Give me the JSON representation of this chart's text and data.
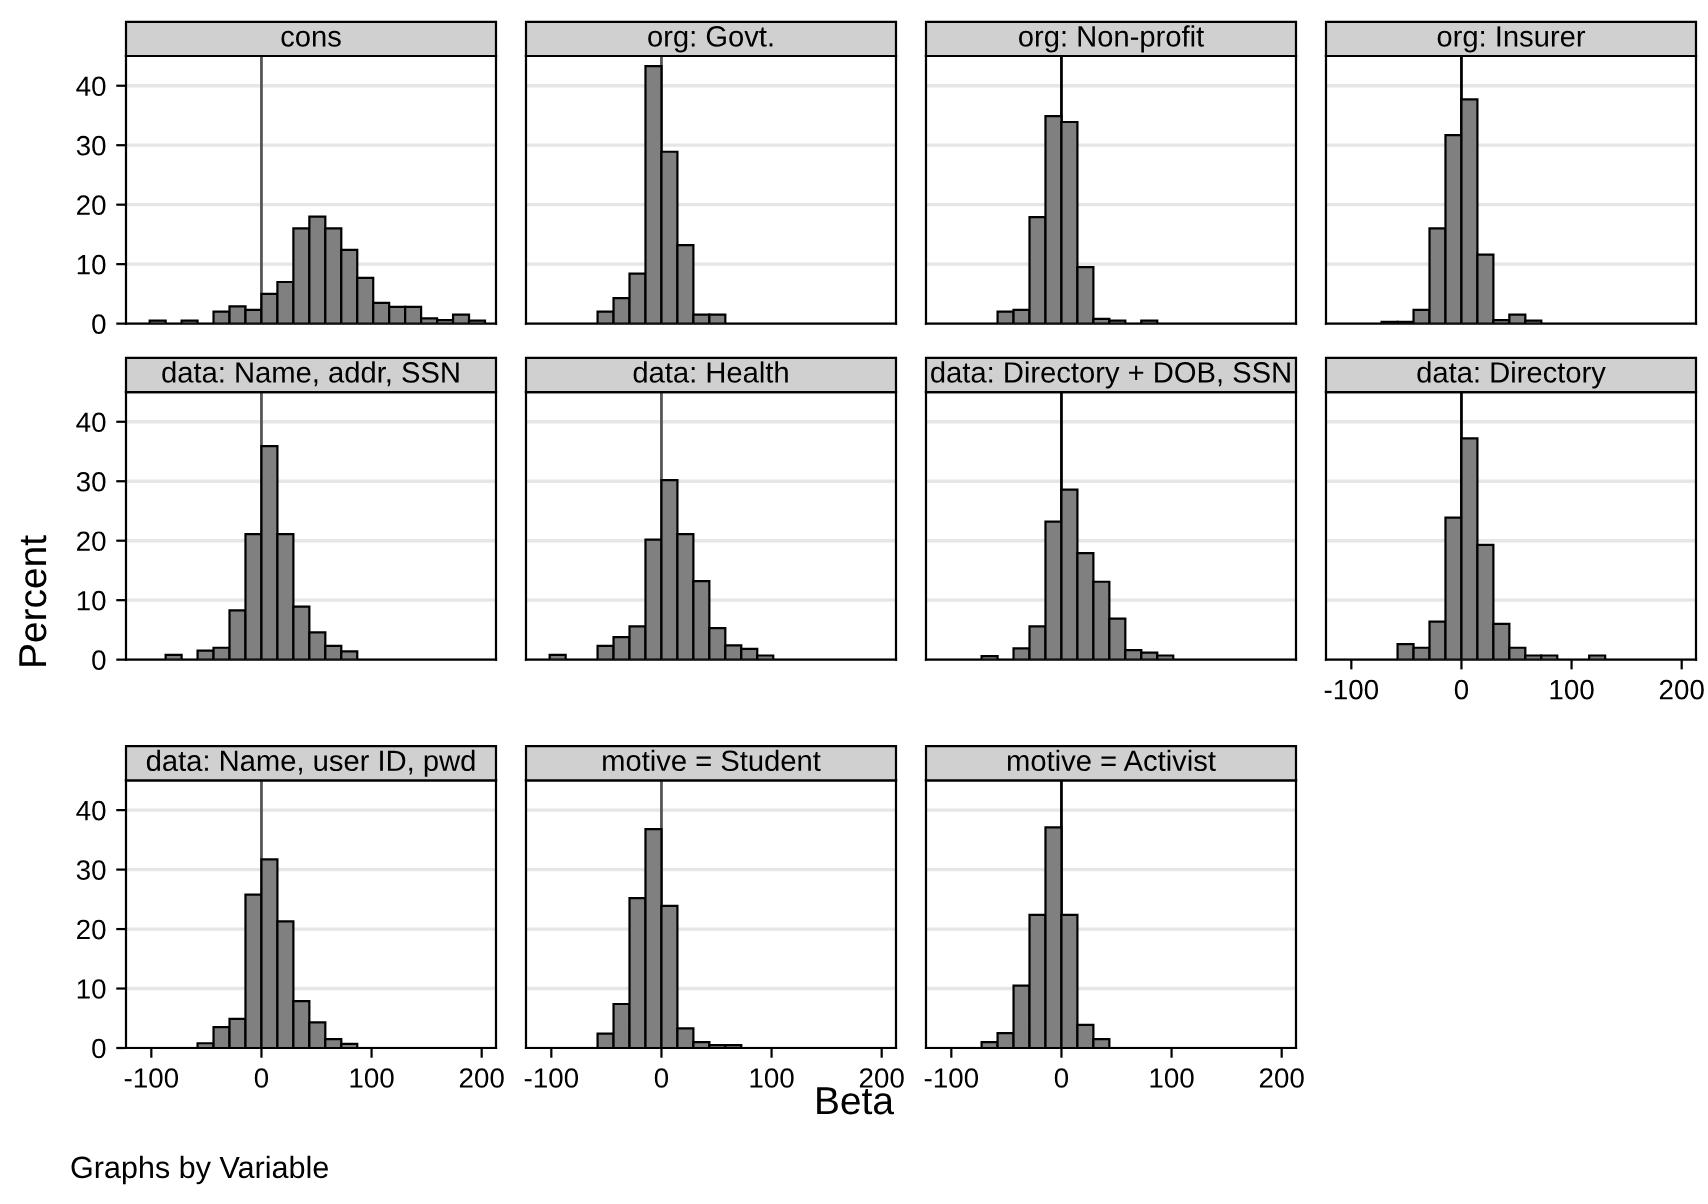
{
  "chart_data": [
    {
      "type": "histogram",
      "title": "cons",
      "bins": [
        -101.5,
        -87,
        -72.5,
        -58,
        -43.5,
        -29,
        -14.5,
        0,
        14.5,
        29,
        43.5,
        58,
        72.5,
        87,
        101.5,
        116,
        130.5,
        145,
        159.5,
        174,
        188.5,
        203
      ],
      "values": [
        0.5,
        0,
        0.5,
        0,
        2,
        2.9,
        2.3,
        5,
        7,
        16,
        18,
        16,
        12.4,
        7.7,
        3.5,
        2.8,
        2.8,
        0.9,
        0.6,
        1.5,
        0.5
      ],
      "color": "#808080",
      "xlim": [
        -123,
        213
      ],
      "ylim": [
        0,
        45
      ],
      "xticks": [
        -100,
        0,
        100,
        200
      ],
      "yticks": [
        0,
        10,
        20,
        30,
        40
      ],
      "grid": "y",
      "tick_labels": "y",
      "ref_lines": [
        {
          "axis": "x",
          "value": 0,
          "color": "#555555"
        }
      ]
    },
    {
      "type": "histogram",
      "title": "org: Govt.",
      "bins": [
        -58,
        -43.5,
        -29,
        -14.5,
        0,
        14.5,
        29,
        43.5,
        58
      ],
      "values": [
        2,
        4.3,
        8.4,
        43.3,
        28.9,
        13.2,
        1.5,
        1.5
      ],
      "color": "#808080",
      "xlim": [
        -123,
        213
      ],
      "ylim": [
        0,
        45
      ],
      "xticks": [
        -100,
        0,
        100,
        200
      ],
      "yticks": [
        0,
        10,
        20,
        30,
        40
      ],
      "grid": "y",
      "tick_labels": false,
      "ref_lines": [
        {
          "axis": "x",
          "value": 0,
          "color": "#555555"
        }
      ]
    },
    {
      "type": "histogram",
      "title": "org: Non-profit",
      "bins": [
        -58,
        -43.5,
        -29,
        -14.5,
        0,
        14.5,
        29,
        43.5,
        58,
        72.5,
        87
      ],
      "values": [
        2,
        2.3,
        17.9,
        34.9,
        33.9,
        9.5,
        0.8,
        0.5,
        0,
        0.5
      ],
      "color": "#808080",
      "xlim": [
        -123,
        213
      ],
      "ylim": [
        0,
        45
      ],
      "xticks": [
        -100,
        0,
        100,
        200
      ],
      "yticks": [
        0,
        10,
        20,
        30,
        40
      ],
      "grid": "y",
      "tick_labels": false,
      "ref_lines": [
        {
          "axis": "x",
          "value": 0,
          "color": "#000000"
        }
      ]
    },
    {
      "type": "histogram",
      "title": "org: Insurer",
      "bins": [
        -72.5,
        -58,
        -43.5,
        -29,
        -14.5,
        0,
        14.5,
        29,
        43.5,
        58,
        72.5
      ],
      "values": [
        0.3,
        0.3,
        2.3,
        16,
        31.7,
        37.7,
        11.6,
        0.6,
        1.5,
        0.5
      ],
      "color": "#808080",
      "xlim": [
        -123,
        213
      ],
      "ylim": [
        0,
        45
      ],
      "xticks": [
        -100,
        0,
        100,
        200
      ],
      "yticks": [
        0,
        10,
        20,
        30,
        40
      ],
      "grid": "y",
      "tick_labels": false,
      "ref_lines": [
        {
          "axis": "x",
          "value": 0,
          "color": "#000000"
        }
      ]
    },
    {
      "type": "histogram",
      "title": "data: Name, addr, SSN",
      "bins": [
        -87,
        -72.5,
        -58,
        -43.5,
        -29,
        -14.5,
        0,
        14.5,
        29,
        43.5,
        58,
        72.5,
        87
      ],
      "values": [
        0.8,
        0,
        1.5,
        2,
        8.3,
        21.1,
        35.9,
        21.1,
        8.9,
        4.6,
        2.3,
        1.4
      ],
      "color": "#808080",
      "xlim": [
        -123,
        213
      ],
      "ylim": [
        0,
        45
      ],
      "xticks": [
        -100,
        0,
        100,
        200
      ],
      "yticks": [
        0,
        10,
        20,
        30,
        40
      ],
      "grid": "y",
      "tick_labels": "y",
      "ref_lines": [
        {
          "axis": "x",
          "value": 0,
          "color": "#555555"
        }
      ]
    },
    {
      "type": "histogram",
      "title": "data: Health",
      "bins": [
        -101.5,
        -87,
        -72.5,
        -58,
        -43.5,
        -29,
        -14.5,
        0,
        14.5,
        29,
        43.5,
        58,
        72.5,
        87,
        101.5
      ],
      "values": [
        0.8,
        0,
        0,
        2.3,
        3.8,
        5.6,
        20.2,
        30.2,
        21.1,
        13.2,
        5.3,
        2.4,
        1.8,
        0.7
      ],
      "color": "#808080",
      "xlim": [
        -123,
        213
      ],
      "ylim": [
        0,
        45
      ],
      "xticks": [
        -100,
        0,
        100,
        200
      ],
      "yticks": [
        0,
        10,
        20,
        30,
        40
      ],
      "grid": "y",
      "tick_labels": false,
      "ref_lines": [
        {
          "axis": "x",
          "value": 0,
          "color": "#555555"
        }
      ]
    },
    {
      "type": "histogram",
      "title": "data: Directory + DOB, SSN",
      "bins": [
        -72.5,
        -58,
        -43.5,
        -29,
        -14.5,
        0,
        14.5,
        29,
        43.5,
        58,
        72.5,
        87,
        101.5
      ],
      "values": [
        0.6,
        0,
        1.9,
        5.6,
        23.2,
        28.6,
        17.9,
        13.1,
        6.9,
        1.6,
        1.2,
        0.7
      ],
      "color": "#808080",
      "xlim": [
        -123,
        213
      ],
      "ylim": [
        0,
        45
      ],
      "xticks": [
        -100,
        0,
        100,
        200
      ],
      "yticks": [
        0,
        10,
        20,
        30,
        40
      ],
      "grid": "y",
      "tick_labels": false,
      "ref_lines": [
        {
          "axis": "x",
          "value": 0,
          "color": "#000000"
        }
      ]
    },
    {
      "type": "histogram",
      "title": "data: Directory",
      "bins": [
        -58,
        -43.5,
        -29,
        -14.5,
        0,
        14.5,
        29,
        43.5,
        58,
        72.5,
        87,
        101.5,
        116,
        130.5
      ],
      "values": [
        2.6,
        2,
        6.4,
        23.9,
        37.2,
        19.3,
        6,
        2,
        0.7,
        0.7,
        0,
        0,
        0.7
      ],
      "color": "#808080",
      "xlim": [
        -123,
        213
      ],
      "ylim": [
        0,
        45
      ],
      "xticks": [
        -100,
        0,
        100,
        200
      ],
      "yticks": [
        0,
        10,
        20,
        30,
        40
      ],
      "grid": "y",
      "tick_labels": "x",
      "ref_lines": [
        {
          "axis": "x",
          "value": 0,
          "color": "#000000"
        }
      ]
    },
    {
      "type": "histogram",
      "title": "data: Name, user ID, pwd",
      "bins": [
        -58,
        -43.5,
        -29,
        -14.5,
        0,
        14.5,
        29,
        43.5,
        58,
        72.5,
        87
      ],
      "values": [
        0.8,
        3.5,
        4.9,
        25.8,
        31.7,
        21.3,
        7.9,
        4.3,
        1.5,
        0.7
      ],
      "color": "#808080",
      "xlim": [
        -123,
        213
      ],
      "ylim": [
        0,
        45
      ],
      "xticks": [
        -100,
        0,
        100,
        200
      ],
      "yticks": [
        0,
        10,
        20,
        30,
        40
      ],
      "grid": "y",
      "ref_lines": [
        {
          "axis": "x",
          "value": 0,
          "color": "#555555"
        }
      ]
    },
    {
      "type": "histogram",
      "title": "motive = Student",
      "bins": [
        -58,
        -43.5,
        -29,
        -14.5,
        0,
        14.5,
        29,
        43.5,
        58,
        72.5
      ],
      "values": [
        2.4,
        7.4,
        25.2,
        36.8,
        23.9,
        3.3,
        1,
        0.5,
        0.5
      ],
      "color": "#808080",
      "xlim": [
        -123,
        213
      ],
      "ylim": [
        0,
        45
      ],
      "xticks": [
        -100,
        0,
        100,
        200
      ],
      "yticks": [
        0,
        10,
        20,
        30,
        40
      ],
      "grid": "y",
      "tick_labels": "x",
      "xlabel": "Beta",
      "ylabel": "Percent",
      "annotations": [
        "Graphs by Variable"
      ],
      "ref_lines": [
        {
          "axis": "x",
          "value": 0,
          "color": "#555555"
        }
      ]
    },
    {
      "type": "histogram",
      "title": "motive = Activist",
      "bins": [
        -72.5,
        -58,
        -43.5,
        -29,
        -14.5,
        0,
        14.5,
        29,
        43.5
      ],
      "values": [
        1,
        2.5,
        10.5,
        22.4,
        37.1,
        22.4,
        3.9,
        1.5
      ],
      "color": "#808080",
      "xlim": [
        -123,
        213
      ],
      "ylim": [
        0,
        45
      ],
      "xticks": [
        -100,
        0,
        100,
        200
      ],
      "yticks": [
        0,
        10,
        20,
        30,
        40
      ],
      "grid": "y",
      "tick_labels": "x",
      "ref_lines": [
        {
          "axis": "x",
          "value": 0,
          "color": "#000000"
        }
      ]
    }
  ]
}
